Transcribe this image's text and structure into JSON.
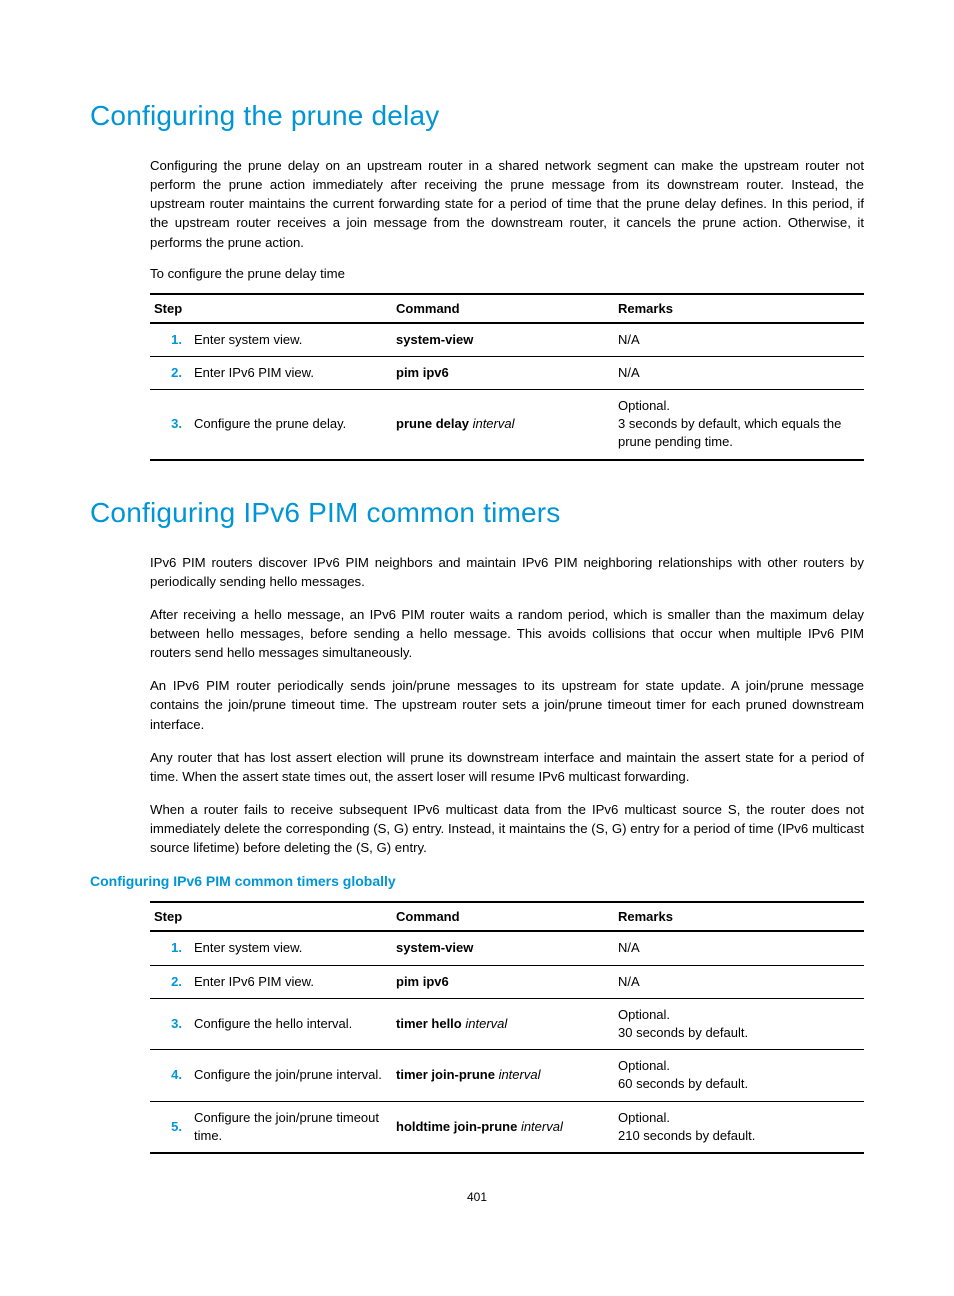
{
  "section1": {
    "title": "Configuring the prune delay",
    "para1": "Configuring the prune delay on an upstream router in a shared network segment can make the upstream router not perform the prune action immediately after receiving the prune message from its downstream router. Instead, the upstream router maintains the current forwarding state for a period of time that the prune delay defines. In this period, if the upstream router receives a join message from the downstream router, it cancels the prune action. Otherwise, it performs the prune action.",
    "leadIn": "To configure the prune delay time",
    "table": {
      "headers": {
        "step": "Step",
        "command": "Command",
        "remarks": "Remarks"
      },
      "rows": [
        {
          "num": "1.",
          "desc": "Enter system view.",
          "cmd_bold": "system-view",
          "cmd_italic": "",
          "remarks": "N/A"
        },
        {
          "num": "2.",
          "desc": "Enter IPv6 PIM view.",
          "cmd_bold": "pim ipv6",
          "cmd_italic": "",
          "remarks": "N/A"
        },
        {
          "num": "3.",
          "desc": "Configure the prune delay.",
          "cmd_bold": "prune delay",
          "cmd_italic": " interval",
          "remarks_line1": "Optional.",
          "remarks_line2": "3 seconds by default, which equals the prune pending time."
        }
      ]
    }
  },
  "section2": {
    "title": "Configuring IPv6 PIM common timers",
    "para1": "IPv6 PIM routers discover IPv6 PIM neighbors and maintain IPv6 PIM neighboring relationships with other routers by periodically sending hello messages.",
    "para2": "After receiving a hello message, an IPv6 PIM router waits a random period, which is smaller than the maximum delay between hello messages, before sending a hello message. This avoids collisions that occur when multiple IPv6 PIM routers send hello messages simultaneously.",
    "para3": "An IPv6 PIM router periodically sends join/prune messages to its upstream for state update. A join/prune message contains the join/prune timeout time. The upstream router sets a join/prune timeout timer for each pruned downstream interface.",
    "para4": "Any router that has lost assert election will prune its downstream interface and maintain the assert state for a period of time. When the assert state times out, the assert loser will resume IPv6 multicast forwarding.",
    "para5": "When a router fails to receive subsequent IPv6 multicast data from the IPv6 multicast source S, the router does not immediately delete the corresponding (S, G) entry. Instead, it maintains the (S, G) entry for a period of time (IPv6 multicast source lifetime) before deleting the (S, G) entry.",
    "subheading": "Configuring IPv6 PIM common timers globally",
    "table": {
      "headers": {
        "step": "Step",
        "command": "Command",
        "remarks": "Remarks"
      },
      "rows": [
        {
          "num": "1.",
          "desc": "Enter system view.",
          "cmd_bold": "system-view",
          "cmd_italic": "",
          "remarks": "N/A"
        },
        {
          "num": "2.",
          "desc": "Enter IPv6 PIM view.",
          "cmd_bold": "pim ipv6",
          "cmd_italic": "",
          "remarks": "N/A"
        },
        {
          "num": "3.",
          "desc": "Configure the hello interval.",
          "cmd_bold": "timer hello",
          "cmd_italic": " interval",
          "remarks_line1": "Optional.",
          "remarks_line2": "30 seconds by default."
        },
        {
          "num": "4.",
          "desc": "Configure the join/prune interval.",
          "cmd_bold": "timer join-prune",
          "cmd_italic": " interval",
          "remarks_line1": "Optional.",
          "remarks_line2": "60 seconds by default."
        },
        {
          "num": "5.",
          "desc": "Configure the join/prune timeout time.",
          "cmd_bold": "holdtime join-prune",
          "cmd_italic": " interval",
          "remarks_line1": "Optional.",
          "remarks_line2": "210 seconds by default."
        }
      ]
    }
  },
  "pageNumber": "401"
}
